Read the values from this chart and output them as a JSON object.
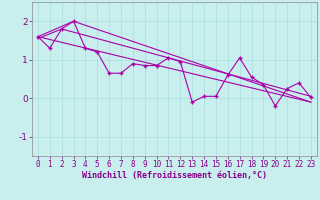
{
  "xlabel": "Windchill (Refroidissement éolien,°C)",
  "bg_color": "#c8eeee",
  "line_color": "#aa00aa",
  "xlim": [
    -0.5,
    23.5
  ],
  "ylim": [
    -1.5,
    2.5
  ],
  "yticks": [
    -1,
    0,
    1,
    2
  ],
  "xticks": [
    0,
    1,
    2,
    3,
    4,
    5,
    6,
    7,
    8,
    9,
    10,
    11,
    12,
    13,
    14,
    15,
    16,
    17,
    18,
    19,
    20,
    21,
    22,
    23
  ],
  "series1_x": [
    0,
    1,
    2,
    3,
    4,
    5,
    6,
    7,
    8,
    9,
    10,
    11,
    12,
    13,
    14,
    15,
    16,
    17,
    18,
    19,
    20,
    21,
    22,
    23
  ],
  "series1_y": [
    1.6,
    1.3,
    1.8,
    2.0,
    1.3,
    1.2,
    0.65,
    0.65,
    0.9,
    0.85,
    0.85,
    1.05,
    0.95,
    -0.1,
    0.05,
    0.05,
    0.6,
    1.05,
    0.55,
    0.35,
    -0.2,
    0.25,
    0.4,
    0.02
  ],
  "series2_x": [
    0,
    23
  ],
  "series2_y": [
    1.6,
    -0.1
  ],
  "series3_x": [
    0,
    3,
    23
  ],
  "series3_y": [
    1.6,
    2.0,
    -0.1
  ],
  "series4_x": [
    0,
    2,
    23
  ],
  "series4_y": [
    1.55,
    1.8,
    0.05
  ],
  "grid_color": "#aadddd",
  "font_color": "#880088",
  "tick_fontsize": 5.5,
  "xlabel_fontsize": 6.0
}
